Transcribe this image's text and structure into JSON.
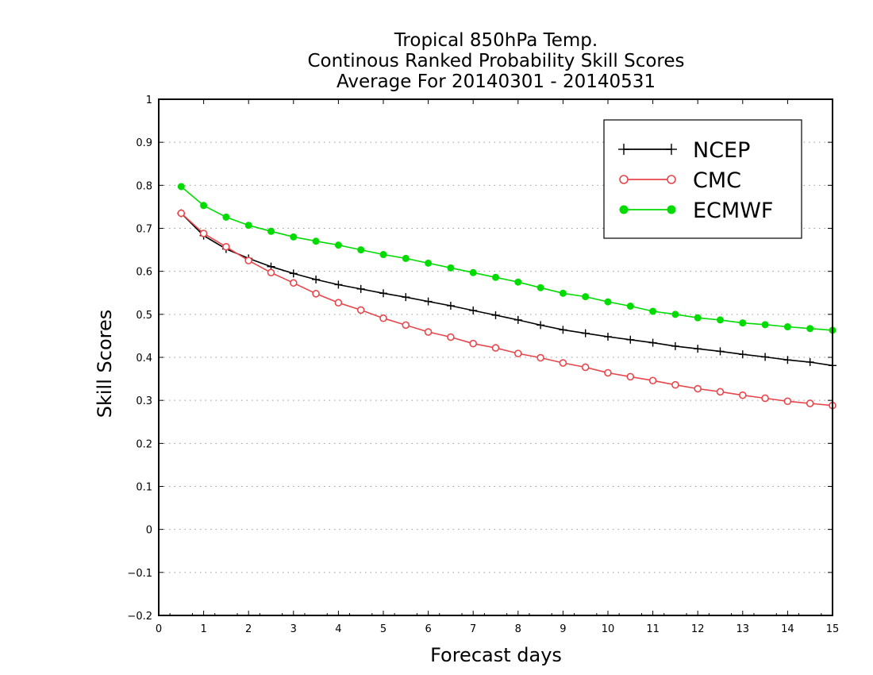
{
  "chart_data": {
    "type": "line",
    "title_lines": [
      "Tropical 850hPa Temp.",
      "Continous Ranked Probability Skill Scores",
      "Average For 20140301 - 20140531"
    ],
    "xlabel": "Forecast days",
    "ylabel": "Skill Scores",
    "xlim": [
      0,
      15
    ],
    "ylim": [
      -0.2,
      1
    ],
    "x_ticks": [
      "0",
      "1",
      "2",
      "3",
      "4",
      "5",
      "6",
      "7",
      "8",
      "9",
      "10",
      "11",
      "12",
      "13",
      "14",
      "15"
    ],
    "y_ticks": [
      "-0.2",
      "-0.1",
      "0",
      "0.1",
      "0.2",
      "0.3",
      "0.4",
      "0.5",
      "0.6",
      "0.7",
      "0.8",
      "0.9",
      "1"
    ],
    "grid": "horizontal dotted",
    "legend_position": "top-right",
    "x": [
      0.5,
      1,
      1.5,
      2,
      2.5,
      3,
      3.5,
      4,
      4.5,
      5,
      5.5,
      6,
      6.5,
      7,
      7.5,
      8,
      8.5,
      9,
      9.5,
      10,
      10.5,
      11,
      11.5,
      12,
      12.5,
      13,
      13.5,
      14,
      14.5,
      15
    ],
    "series": [
      {
        "name": "NCEP",
        "color": "#000000",
        "marker": "plus",
        "values": [
          0.735,
          0.683,
          0.652,
          0.63,
          0.611,
          0.595,
          0.581,
          0.569,
          0.559,
          0.549,
          0.54,
          0.53,
          0.52,
          0.509,
          0.498,
          0.487,
          0.475,
          0.464,
          0.456,
          0.448,
          0.441,
          0.434,
          0.426,
          0.42,
          0.414,
          0.407,
          0.401,
          0.394,
          0.389,
          0.381
        ]
      },
      {
        "name": "CMC",
        "color": "#e8464b",
        "marker": "open-circle",
        "values": [
          0.735,
          0.688,
          0.657,
          0.625,
          0.597,
          0.573,
          0.548,
          0.527,
          0.51,
          0.491,
          0.475,
          0.459,
          0.447,
          0.432,
          0.422,
          0.409,
          0.399,
          0.387,
          0.377,
          0.364,
          0.355,
          0.346,
          0.336,
          0.327,
          0.32,
          0.312,
          0.305,
          0.298,
          0.293,
          0.288
        ]
      },
      {
        "name": "ECMWF",
        "color": "#00dc00",
        "marker": "filled-circle",
        "values": [
          0.797,
          0.753,
          0.726,
          0.707,
          0.693,
          0.68,
          0.67,
          0.661,
          0.65,
          0.639,
          0.63,
          0.619,
          0.608,
          0.597,
          0.586,
          0.575,
          0.562,
          0.549,
          0.541,
          0.529,
          0.519,
          0.507,
          0.5,
          0.492,
          0.487,
          0.48,
          0.476,
          0.471,
          0.467,
          0.463
        ]
      }
    ]
  }
}
